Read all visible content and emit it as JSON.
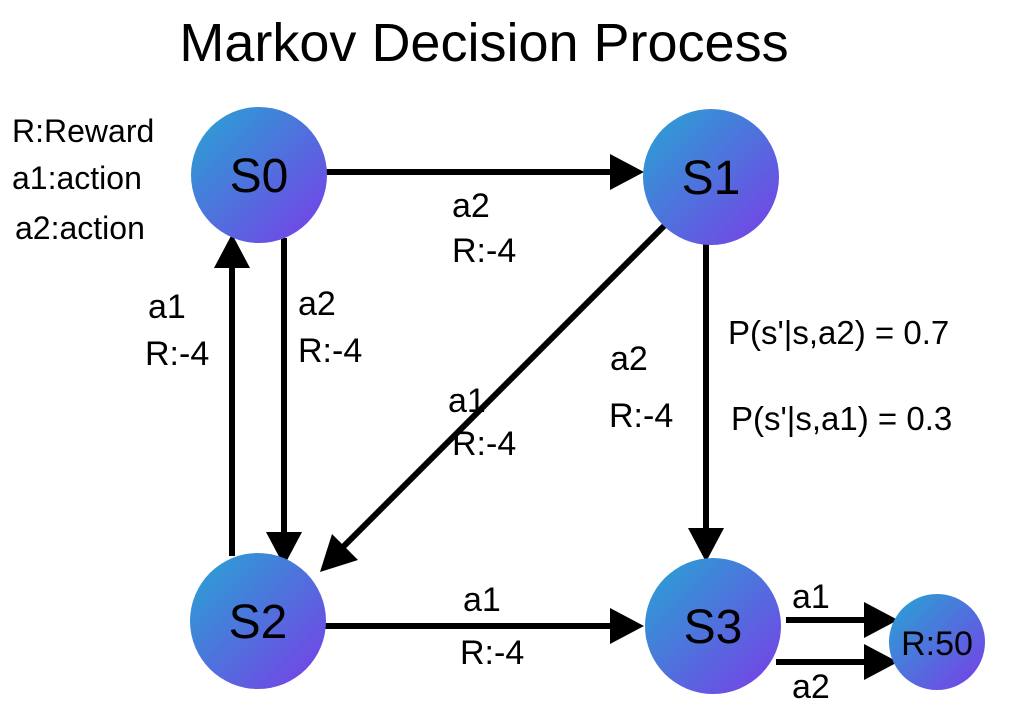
{
  "title": "Markov Decision Process",
  "legend": [
    "R:Reward",
    "a1:action",
    "a2:action"
  ],
  "colors": {
    "node_top": "#25a6d2",
    "node_bottom": "#7a3ce8",
    "edge": "#000000",
    "background": "#ffffff"
  },
  "nodes": {
    "s0": "S0",
    "s1": "S1",
    "s2": "S2",
    "s3": "S3",
    "terminal": "R:50"
  },
  "edges": {
    "s0_s1": {
      "action": "a2",
      "reward": "R:-4"
    },
    "s0_s2": {
      "action": "a2",
      "reward": "R:-4"
    },
    "s2_s0": {
      "action": "a1",
      "reward": "R:-4"
    },
    "s1_s2": {
      "action": "a1",
      "reward": "R:-4"
    },
    "s1_s3": {
      "action": "a2",
      "reward": "R:-4"
    },
    "s2_s3": {
      "action": "a1",
      "reward": "R:-4"
    },
    "s3_term_a1": {
      "action": "a1"
    },
    "s3_term_a2": {
      "action": "a2"
    }
  },
  "probabilities": [
    "P(s'|s,a2) = 0.7",
    "P(s'|s,a1) = 0.3"
  ]
}
